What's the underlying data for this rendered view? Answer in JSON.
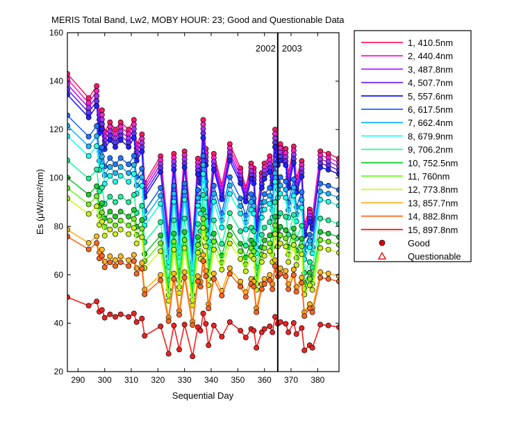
{
  "chart_data": {
    "type": "line",
    "title": "MERIS Total Band,  Lw2, MOBY HOUR: 23;  Good and Questionable Data",
    "xlabel": "Sequential Day",
    "ylabel": "Es (μW/cm²/nm)",
    "xlim": [
      286,
      388
    ],
    "ylim": [
      20,
      160
    ],
    "xticks": [
      290,
      300,
      310,
      320,
      330,
      340,
      350,
      360,
      370,
      380
    ],
    "yticks": [
      20,
      40,
      60,
      80,
      100,
      120,
      140,
      160
    ],
    "grid": false,
    "legend_position": "right-outside",
    "year_divider": {
      "x": 365,
      "left_label": "2002",
      "right_label": "2003"
    },
    "marker_legend": [
      {
        "label": "Good",
        "marker": "filled-circle"
      },
      {
        "label": "Questionable",
        "marker": "open-triangle"
      }
    ],
    "x": [
      286,
      294,
      297,
      298,
      299,
      300,
      302,
      304,
      306,
      309,
      311,
      312,
      314,
      315,
      321,
      324,
      326,
      328,
      330,
      333,
      335,
      336,
      337,
      338,
      339,
      341,
      344,
      347,
      351,
      353,
      355,
      356,
      357,
      359,
      360,
      362,
      363,
      364,
      365,
      366,
      368,
      369,
      371,
      372,
      374,
      375,
      377,
      378,
      381,
      384,
      388
    ],
    "reference": [
      143,
      133,
      138,
      126,
      128,
      119,
      123,
      120,
      123,
      120,
      124,
      114,
      118,
      98,
      109,
      77,
      110,
      82,
      111,
      74,
      108,
      104,
      124,
      112,
      87,
      110,
      97,
      114,
      104,
      96,
      106,
      104,
      84,
      102,
      106,
      109,
      102,
      120,
      112,
      114,
      112,
      102,
      113,
      100,
      107,
      81,
      87,
      84,
      111,
      110,
      108
    ],
    "series": [
      {
        "name": "1, 410.5nm",
        "color": "#ff1a66",
        "scale": 1.0,
        "fill": "#ff1a66"
      },
      {
        "name": "2, 440.4nm",
        "color": "#ff1acc",
        "scale": 0.985,
        "fill": "#ff22cc"
      },
      {
        "name": "3, 487.8nm",
        "color": "#b01aff",
        "scale": 0.97,
        "fill": "#aa33ff"
      },
      {
        "name": "4, 507.7nm",
        "color": "#661aff",
        "scale": 0.955,
        "fill": "#6633ff"
      },
      {
        "name": "5, 557.6nm",
        "color": "#1a1aff",
        "scale": 0.94,
        "fill": "#2222ff"
      },
      {
        "name": "6, 617.5nm",
        "color": "#1a66ff",
        "scale": 0.88,
        "fill": "#2277ff"
      },
      {
        "name": "7, 662.4nm",
        "color": "#1ab0ff",
        "scale": 0.85,
        "fill": "#22b6ff"
      },
      {
        "name": "8, 679.9nm",
        "color": "#1affee",
        "scale": 0.82,
        "fill": "#22ffee"
      },
      {
        "name": "9, 706.2nm",
        "color": "#1aff99",
        "scale": 0.75,
        "fill": "#22ee99"
      },
      {
        "name": "10, 752.5nm",
        "color": "#1acc33",
        "scale": 0.7,
        "fill": "#22cc33"
      },
      {
        "name": "11,   760nm",
        "color": "#66ff1a",
        "scale": 0.67,
        "fill": "#77ee22"
      },
      {
        "name": "12, 773.8nm",
        "color": "#ccff1a",
        "scale": 0.64,
        "fill": "#ccee22"
      },
      {
        "name": "13, 857.7nm",
        "color": "#ffb01a",
        "scale": 0.55,
        "fill": "#ffbb22"
      },
      {
        "name": "14, 882.8nm",
        "color": "#ff661a",
        "scale": 0.53,
        "fill": "#ff6622"
      },
      {
        "name": "15, 897.8nm",
        "color": "#ff1a1a",
        "scale": 0.355,
        "fill": "#ee2222"
      }
    ]
  }
}
